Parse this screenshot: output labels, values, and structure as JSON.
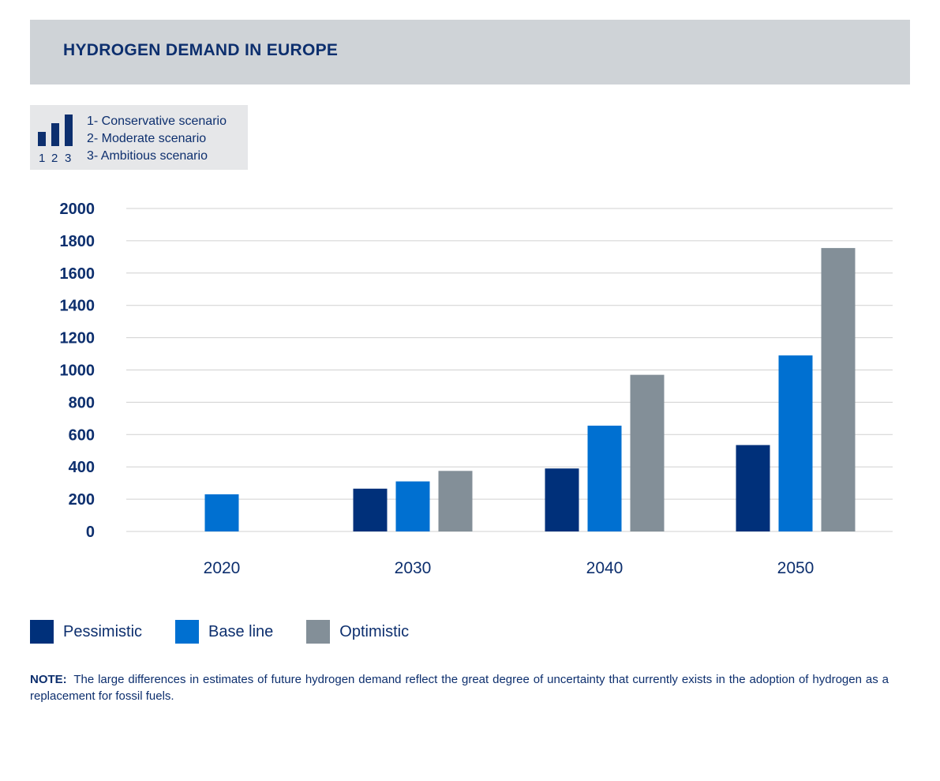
{
  "header": {
    "title": "HYDROGEN DEMAND IN EUROPE"
  },
  "scenario_key": {
    "numbers": [
      "1",
      "2",
      "3"
    ],
    "lines": [
      "1- Conservative scenario",
      "2- Moderate scenario",
      "3- Ambitious scenario"
    ]
  },
  "colors": {
    "pessimistic": "#00307a",
    "base_line": "#0070d1",
    "optimistic": "#838f98",
    "grid": "#d0d0d0",
    "text": "#0d2f6e"
  },
  "chart_data": {
    "type": "bar",
    "title": "HYDROGEN DEMAND IN EUROPE",
    "xlabel": "",
    "ylabel": "",
    "ylim": [
      0,
      2000
    ],
    "yticks": [
      0,
      200,
      400,
      600,
      800,
      1000,
      1200,
      1400,
      1600,
      1800,
      2000
    ],
    "ytick_labels": [
      "0",
      "200",
      "400",
      "600",
      "800",
      "1000",
      "1200",
      "1400",
      "1600",
      "1800",
      "2000"
    ],
    "grid": true,
    "legend_position": "bottom-left",
    "categories": [
      "2020",
      "2030",
      "2040",
      "2050"
    ],
    "series": [
      {
        "name": "Pessimistic",
        "values": [
          null,
          265,
          390,
          535
        ]
      },
      {
        "name": "Base line",
        "values": [
          230,
          310,
          655,
          1090
        ]
      },
      {
        "name": "Optimistic",
        "values": [
          null,
          375,
          970,
          1755
        ]
      }
    ]
  },
  "note": {
    "label": "NOTE:",
    "text": "The large differences in estimates of future hydrogen demand reflect the great degree of uncertainty that currently exists in the adoption of hydrogen as a replacement for fossil fuels."
  }
}
